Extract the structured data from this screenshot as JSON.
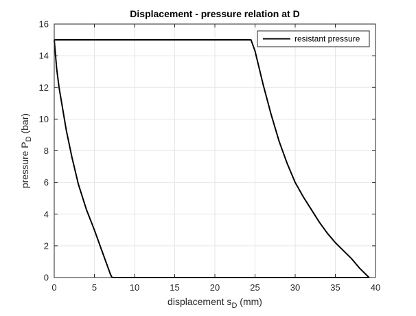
{
  "chart_data": {
    "type": "line",
    "title": "Displacement - pressure relation at D",
    "xlabel": {
      "text": "displacement s",
      "sub": "D",
      "suffix": " (mm)"
    },
    "ylabel": {
      "text": "pressure P",
      "sub": "D",
      "suffix": " (bar)"
    },
    "xlim": [
      0,
      40
    ],
    "ylim": [
      0,
      16
    ],
    "xticks": [
      0,
      5,
      10,
      15,
      20,
      25,
      30,
      35,
      40
    ],
    "yticks": [
      0,
      2,
      4,
      6,
      8,
      10,
      12,
      14,
      16
    ],
    "grid": true,
    "legend_position": "top-right",
    "series": [
      {
        "name": "resistant pressure",
        "color": "#000000",
        "x": [
          0,
          0.3,
          0.6,
          1.0,
          1.5,
          2.2,
          3.0,
          4.0,
          5.0,
          6.0,
          7.0,
          7.2,
          39.2,
          38.0,
          37.0,
          36.0,
          35.0,
          34.0,
          33.0,
          32.0,
          31.0,
          30.0,
          29.0,
          28.0,
          27.0,
          26.0,
          25.0,
          24.5,
          0
        ],
        "y": [
          15.0,
          13.2,
          12.0,
          10.8,
          9.3,
          7.6,
          5.9,
          4.3,
          3.0,
          1.6,
          0.2,
          0,
          0,
          0.6,
          1.2,
          1.7,
          2.2,
          2.8,
          3.5,
          4.3,
          5.1,
          6.0,
          7.2,
          8.6,
          10.3,
          12.2,
          14.3,
          15.0,
          15.0
        ]
      }
    ]
  }
}
